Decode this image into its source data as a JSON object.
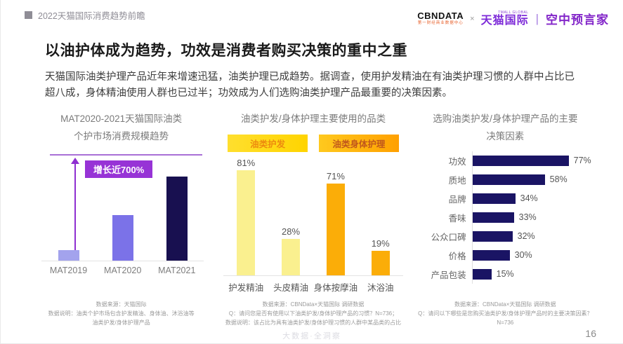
{
  "page": {
    "header": {
      "deck_title": "2022天猫国际消费趋势前瞻",
      "logo_cbndata": "CBNDATA",
      "logo_cbndata_sub": "第一财经商业数据中心",
      "logo_separator": "×",
      "logo_tmall_sup": "TMALL GLOBAL",
      "logo_tmall": "天猫国际",
      "logo_divider": "|",
      "logo_program": "空中预言家"
    },
    "title": "以油护体成为趋势，功效是消费者购买决策的重中之重",
    "body": "天猫国际油类护理产品近年来增速迅猛，油类护理已成趋势。据调查，使用护发精油在有油类护理习惯的人群中占比已超八成，身体精油使用人群也已过半；功效成为人们选购油类护理产品最重要的决策因素。",
    "watermark": "大数据·全洞察",
    "page_number": "16"
  },
  "chart_data": [
    {
      "type": "bar",
      "title_lines": [
        "MAT2020-2021天猫国际油类",
        "个护市场消费规模趋势"
      ],
      "categories": [
        "MAT2019",
        "MAT2020",
        "MAT2021"
      ],
      "values": [
        1,
        4.3,
        8
      ],
      "values_unit": "indexed consumption scale (MAT2019 = 1, no axis shown)",
      "annotation": "增长近700%",
      "bar_colors": [
        "#a3a3ed",
        "#7b72e8",
        "#181050"
      ],
      "accent_color": "#9733d6",
      "footnotes": [
        "数据来源：天猫国际",
        "数据说明：油类个护市场包含护发精油、身体油、沐浴油等",
        "油类护发/身体护理产品"
      ]
    },
    {
      "type": "bar",
      "title": "油类护发/身体护理主要使用的品类",
      "legend": [
        {
          "label": "油类护发",
          "bg_from": "#ffdf2e",
          "bg_to": "#ffd400",
          "text_color": "#ed8a0e"
        },
        {
          "label": "油类身体护理",
          "bg_from": "#ffc91e",
          "bg_to": "#ffa000",
          "text_color": "#c0571c"
        }
      ],
      "categories": [
        "护发精油",
        "头皮精油",
        "身体按摩油",
        "沐浴油"
      ],
      "values": [
        81,
        28,
        71,
        19
      ],
      "values_unit": "percent",
      "bar_colors": [
        "#faf08f",
        "#faf08f",
        "#fbad08",
        "#fbad08"
      ],
      "footnotes": [
        "数据来源：CBNData×天猫国际 调研数据",
        "Q：请问您是否有使用以下油类护发/身体护理产品的习惯？N=736；",
        "数据说明：该占比为具有油类护发/身体护理习惯的人群中某品类的占比"
      ]
    },
    {
      "type": "bar-horizontal",
      "title_lines": [
        "选购油类护发/身体护理产品的主要",
        "决策因素"
      ],
      "categories": [
        "功效",
        "质地",
        "品牌",
        "香味",
        "公众口碑",
        "价格",
        "产品包装"
      ],
      "values": [
        77,
        58,
        34,
        33,
        32,
        30,
        15
      ],
      "values_unit": "percent",
      "bar_color": "#1a1464",
      "footnotes": [
        "数据来源：CBNData×天猫国际 调研数据",
        "Q：请问以下哪些是您购买油类护发/身体护理产品时的主要决策因素？N=736"
      ]
    }
  ]
}
